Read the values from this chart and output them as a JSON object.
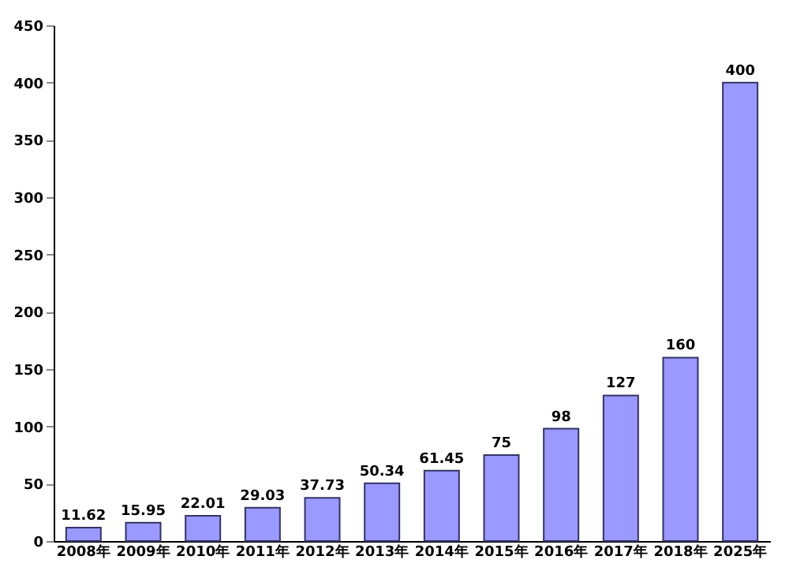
{
  "chart_data": {
    "type": "bar",
    "categories": [
      "2008年",
      "2009年",
      "2010年",
      "2011年",
      "2012年",
      "2013年",
      "2014年",
      "2015年",
      "2016年",
      "2017年",
      "2018年",
      "2025年"
    ],
    "values": [
      11.62,
      15.95,
      22.01,
      29.03,
      37.73,
      50.34,
      61.45,
      75,
      98,
      127,
      160,
      400
    ],
    "color": "#9999ff",
    "ylim": [
      0,
      450
    ],
    "yticks": [
      0,
      50,
      100,
      150,
      200,
      250,
      300,
      350,
      400,
      450
    ],
    "grid": false,
    "data_labels": true
  }
}
